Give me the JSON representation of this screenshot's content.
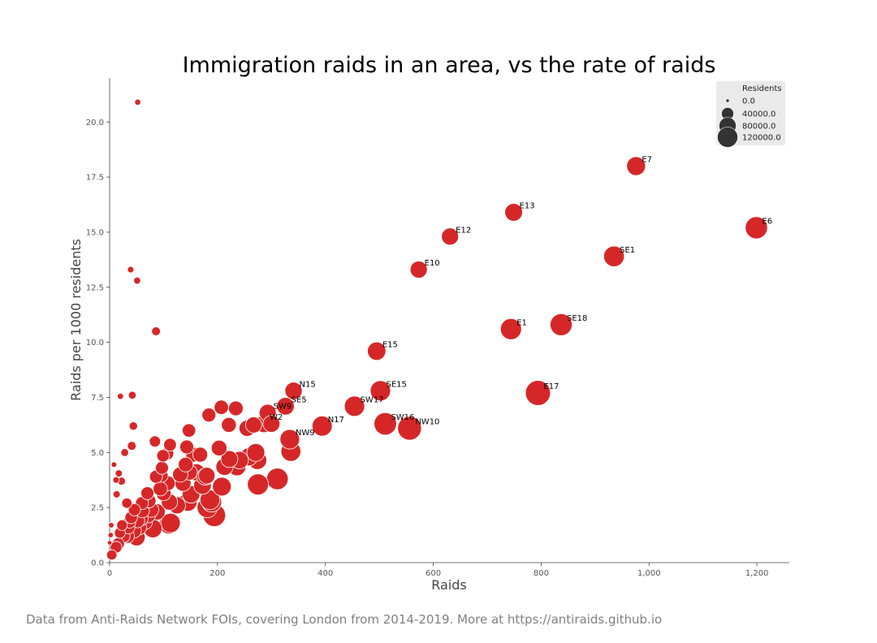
{
  "chart_data": {
    "type": "scatter",
    "title": "Immigration raids in an area, vs the rate of raids",
    "xlabel": "Raids",
    "ylabel": "Raids per 1000 residents",
    "xlim": [
      0,
      1260
    ],
    "ylim": [
      0,
      22
    ],
    "xticks": [
      0,
      200,
      400,
      600,
      800,
      1000,
      1200
    ],
    "xtick_labels": [
      "0",
      "200",
      "400",
      "600",
      "800",
      "1,000",
      "1,200"
    ],
    "yticks": [
      0,
      2.5,
      5,
      7.5,
      10,
      12.5,
      15,
      17.5,
      20
    ],
    "ytick_labels": [
      "0.0",
      "2.5",
      "5.0",
      "7.5",
      "10.0",
      "12.5",
      "15.0",
      "17.5",
      "20.0"
    ],
    "grid": false,
    "color": "#d62728",
    "point_edge_color": "#ffffff",
    "legend": {
      "title": "Residents",
      "placement": "top-right",
      "entries": [
        "0.0",
        "40000.0",
        "80000.0",
        "120000.0"
      ],
      "marker_color": "#333333",
      "background": "#e8e8e8"
    },
    "labeled_points": [
      {
        "label": "E7",
        "x": 976,
        "y": 18.0,
        "residents": 54000
      },
      {
        "label": "E13",
        "x": 749,
        "y": 15.9,
        "residents": 47000
      },
      {
        "label": "E12",
        "x": 631,
        "y": 14.8,
        "residents": 43000
      },
      {
        "label": "E6",
        "x": 1199,
        "y": 15.2,
        "residents": 79000
      },
      {
        "label": "SE1",
        "x": 935,
        "y": 13.9,
        "residents": 67000
      },
      {
        "label": "E10",
        "x": 573,
        "y": 13.3,
        "residents": 43000
      },
      {
        "label": "E1",
        "x": 744,
        "y": 10.6,
        "residents": 70000
      },
      {
        "label": "SE18",
        "x": 837,
        "y": 10.8,
        "residents": 77000
      },
      {
        "label": "E15",
        "x": 495,
        "y": 9.6,
        "residents": 51000
      },
      {
        "label": "N15",
        "x": 341,
        "y": 7.8,
        "residents": 44000
      },
      {
        "label": "SE15",
        "x": 502,
        "y": 7.8,
        "residents": 64000
      },
      {
        "label": "E17",
        "x": 794,
        "y": 7.7,
        "residents": 103000
      },
      {
        "label": "SE5",
        "x": 326,
        "y": 7.1,
        "residents": 46000
      },
      {
        "label": "SW9",
        "x": 293,
        "y": 6.8,
        "residents": 43000
      },
      {
        "label": "SW17",
        "x": 454,
        "y": 7.1,
        "residents": 64000
      },
      {
        "label": "W2",
        "x": 286,
        "y": 6.3,
        "residents": 45000
      },
      {
        "label": "N17",
        "x": 394,
        "y": 6.2,
        "residents": 63000
      },
      {
        "label": "SW16",
        "x": 511,
        "y": 6.3,
        "residents": 81000
      },
      {
        "label": "NW10",
        "x": 556,
        "y": 6.1,
        "residents": 92000
      },
      {
        "label": "NW9",
        "x": 334,
        "y": 5.6,
        "residents": 59000
      }
    ],
    "points": [
      {
        "x": 52,
        "y": 20.9,
        "residents": 2500
      },
      {
        "x": 39,
        "y": 13.3,
        "residents": 3000
      },
      {
        "x": 51,
        "y": 12.8,
        "residents": 4000
      },
      {
        "x": 86,
        "y": 10.5,
        "residents": 8000
      },
      {
        "x": 20,
        "y": 7.55,
        "residents": 2600
      },
      {
        "x": 42,
        "y": 7.6,
        "residents": 5500
      },
      {
        "x": 44,
        "y": 6.2,
        "residents": 7000
      },
      {
        "x": 8,
        "y": 4.45,
        "residents": 1800
      },
      {
        "x": 41,
        "y": 5.3,
        "residents": 7800
      },
      {
        "x": 28,
        "y": 5.0,
        "residents": 5600
      },
      {
        "x": 17,
        "y": 4.05,
        "residents": 4200
      },
      {
        "x": 12,
        "y": 3.75,
        "residents": 3200
      },
      {
        "x": 22,
        "y": 3.7,
        "residents": 5900
      },
      {
        "x": 13,
        "y": 3.1,
        "residents": 4200
      },
      {
        "x": 3,
        "y": 1.7,
        "residents": 1800
      },
      {
        "x": 2,
        "y": 1.25,
        "residents": 1600
      },
      {
        "x": 0,
        "y": 0.9,
        "residents": 800
      },
      {
        "x": 4,
        "y": 0.35,
        "residents": 12000
      },
      {
        "x": 12,
        "y": 0.7,
        "residents": 17000
      },
      {
        "x": 16,
        "y": 0.85,
        "residents": 19000
      },
      {
        "x": 19,
        "y": 1.35,
        "residents": 14000
      },
      {
        "x": 23,
        "y": 1.7,
        "residents": 13500
      },
      {
        "x": 26,
        "y": 1.2,
        "residents": 22000
      },
      {
        "x": 32,
        "y": 2.7,
        "residents": 12000
      },
      {
        "x": 33,
        "y": 1.2,
        "residents": 27000
      },
      {
        "x": 35,
        "y": 1.6,
        "residents": 22000
      },
      {
        "x": 37,
        "y": 1.85,
        "residents": 20000
      },
      {
        "x": 40,
        "y": 2.05,
        "residents": 20000
      },
      {
        "x": 45,
        "y": 1.45,
        "residents": 31000
      },
      {
        "x": 46,
        "y": 2.4,
        "residents": 19000
      },
      {
        "x": 50,
        "y": 1.15,
        "residents": 43000
      },
      {
        "x": 52,
        "y": 1.9,
        "residents": 27000
      },
      {
        "x": 54,
        "y": 1.6,
        "residents": 34000
      },
      {
        "x": 58,
        "y": 2.0,
        "residents": 29000
      },
      {
        "x": 60,
        "y": 2.7,
        "residents": 22000
      },
      {
        "x": 61,
        "y": 2.35,
        "residents": 26000
      },
      {
        "x": 65,
        "y": 1.85,
        "residents": 35000
      },
      {
        "x": 70,
        "y": 3.15,
        "residents": 22000
      },
      {
        "x": 71,
        "y": 2.15,
        "residents": 33000
      },
      {
        "x": 73,
        "y": 2.8,
        "residents": 26000
      },
      {
        "x": 77,
        "y": 2.4,
        "residents": 32000
      },
      {
        "x": 80,
        "y": 1.55,
        "residents": 52000
      },
      {
        "x": 84,
        "y": 5.5,
        "residents": 15000
      },
      {
        "x": 86,
        "y": 3.9,
        "residents": 22000
      },
      {
        "x": 88,
        "y": 2.3,
        "residents": 38000
      },
      {
        "x": 94,
        "y": 3.35,
        "residents": 28000
      },
      {
        "x": 96,
        "y": 3.95,
        "residents": 24000
      },
      {
        "x": 97,
        "y": 4.3,
        "residents": 22000
      },
      {
        "x": 99,
        "y": 4.85,
        "residents": 20000
      },
      {
        "x": 100,
        "y": 3.15,
        "residents": 32000
      },
      {
        "x": 107,
        "y": 4.95,
        "residents": 21000
      },
      {
        "x": 108,
        "y": 3.6,
        "residents": 30000
      },
      {
        "x": 110,
        "y": 1.75,
        "residents": 60000
      },
      {
        "x": 111,
        "y": 2.75,
        "residents": 38000
      },
      {
        "x": 112,
        "y": 5.35,
        "residents": 21000
      },
      {
        "x": 113,
        "y": 1.8,
        "residents": 58000
      },
      {
        "x": 125,
        "y": 2.6,
        "residents": 42000
      },
      {
        "x": 131,
        "y": 4.0,
        "residents": 33000
      },
      {
        "x": 136,
        "y": 3.6,
        "residents": 37000
      },
      {
        "x": 141,
        "y": 4.45,
        "residents": 30000
      },
      {
        "x": 143,
        "y": 5.25,
        "residents": 26000
      },
      {
        "x": 145,
        "y": 2.75,
        "residents": 51000
      },
      {
        "x": 147,
        "y": 6.0,
        "residents": 24000
      },
      {
        "x": 148,
        "y": 4.1,
        "residents": 35000
      },
      {
        "x": 151,
        "y": 3.1,
        "residents": 46000
      },
      {
        "x": 155,
        "y": 4.9,
        "residents": 31000
      },
      {
        "x": 161,
        "y": 4.1,
        "residents": 42000
      },
      {
        "x": 168,
        "y": 4.9,
        "residents": 31000
      },
      {
        "x": 172,
        "y": 3.5,
        "residents": 46000
      },
      {
        "x": 177,
        "y": 3.9,
        "residents": 42000
      },
      {
        "x": 180,
        "y": 3.95,
        "residents": 40000
      },
      {
        "x": 181,
        "y": 2.5,
        "residents": 64000
      },
      {
        "x": 184,
        "y": 6.7,
        "residents": 26000
      },
      {
        "x": 186,
        "y": 2.85,
        "residents": 60000
      },
      {
        "x": 189,
        "y": 2.75,
        "residents": 62000
      },
      {
        "x": 194,
        "y": 2.15,
        "residents": 82000
      },
      {
        "x": 203,
        "y": 5.2,
        "residents": 35000
      },
      {
        "x": 207,
        "y": 7.05,
        "residents": 28000
      },
      {
        "x": 208,
        "y": 3.45,
        "residents": 53000
      },
      {
        "x": 213,
        "y": 4.35,
        "residents": 44000
      },
      {
        "x": 221,
        "y": 6.25,
        "residents": 31000
      },
      {
        "x": 222,
        "y": 4.7,
        "residents": 42000
      },
      {
        "x": 234,
        "y": 7.0,
        "residents": 30000
      },
      {
        "x": 236,
        "y": 4.35,
        "residents": 48000
      },
      {
        "x": 241,
        "y": 4.65,
        "residents": 46000
      },
      {
        "x": 255,
        "y": 6.1,
        "residents": 38000
      },
      {
        "x": 258,
        "y": 4.8,
        "residents": 48000
      },
      {
        "x": 267,
        "y": 6.25,
        "residents": 38000
      },
      {
        "x": 271,
        "y": 5.0,
        "residents": 48000
      },
      {
        "x": 274,
        "y": 4.65,
        "residents": 52000
      },
      {
        "x": 275,
        "y": 3.55,
        "residents": 70000
      },
      {
        "x": 300,
        "y": 6.3,
        "residents": 42000
      },
      {
        "x": 311,
        "y": 3.8,
        "residents": 74000
      },
      {
        "x": 336,
        "y": 5.05,
        "residents": 61000
      }
    ]
  },
  "footer": "Data from Anti-Raids Network FOIs, covering London from 2014-2019. More at https://antiraids.github.io"
}
